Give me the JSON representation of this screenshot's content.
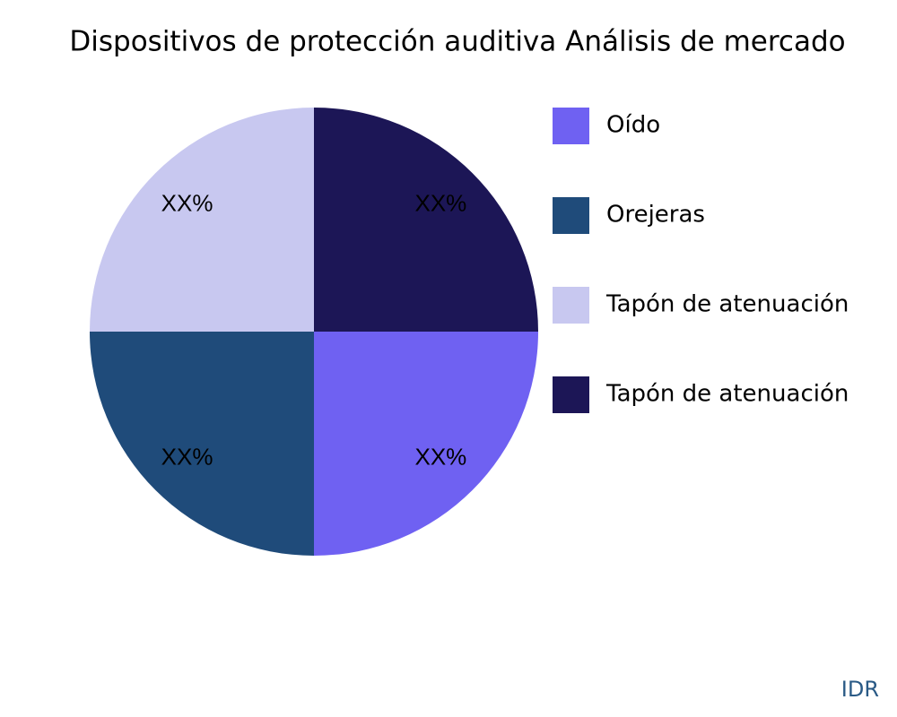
{
  "chart_data": {
    "type": "pie",
    "title": "Dispositivos de protección auditiva Análisis de mercado",
    "categories": [
      "Oído",
      "Orejeras",
      "Tapón de atenuación",
      "Tapón de atenuación"
    ],
    "values": [
      25,
      25,
      25,
      25
    ],
    "value_labels": [
      "XX%",
      "XX%",
      "XX%",
      "XX%"
    ],
    "colors": [
      "#6f61f2",
      "#1f4b7a",
      "#c8c8f0",
      "#1c1656"
    ],
    "legend": "right",
    "source": "IDR"
  }
}
